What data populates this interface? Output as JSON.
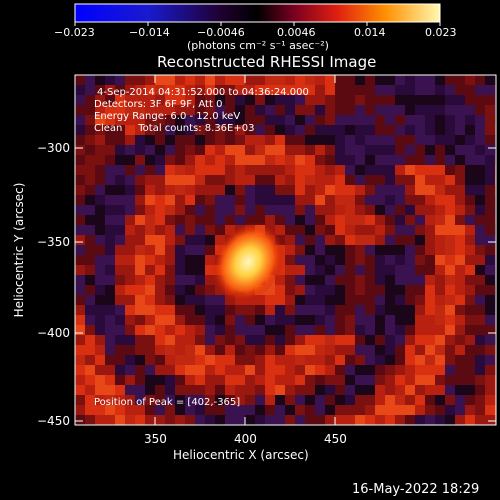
{
  "colorbar": {
    "tick_labels": [
      "−0.023",
      "−0.014",
      "−0.0046",
      "0.0046",
      "0.014",
      "0.023"
    ],
    "unit_label": "(photons cm⁻² s⁻¹ asec⁻²)"
  },
  "title": "Reconstructed RHESSI Image",
  "info": {
    "time_range": "4-Sep-2014 04:31:52.000 to 04:36:24.000",
    "detectors": "Detectors: 3F 6F 9F, Att 0",
    "energy": "Energy Range: 6.0 - 12.0 keV",
    "method": "Clean     Total counts: 8.36E+03",
    "peak": "Position of Peak = [402,-365]"
  },
  "x_axis": {
    "label": "Heliocentric X (arcsec)",
    "tick_labels": [
      "350",
      "400",
      "450"
    ]
  },
  "y_axis": {
    "label": "Heliocentric Y (arcsec)",
    "tick_labels": [
      "−300",
      "−350",
      "−400",
      "−450"
    ]
  },
  "timestamp": "16-May-2022 18:29"
}
